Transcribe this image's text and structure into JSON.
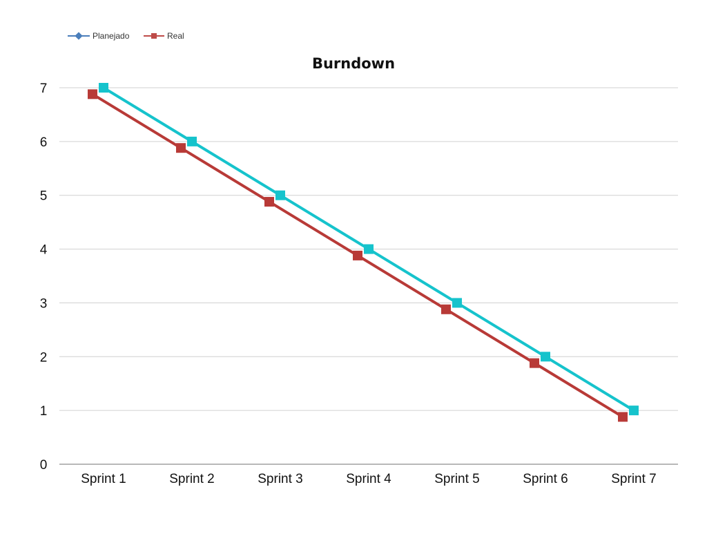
{
  "chart_data": {
    "type": "line",
    "title": "Burndown",
    "xlabel": "",
    "ylabel": "",
    "categories": [
      "Sprint 1",
      "Sprint 2",
      "Sprint 3",
      "Sprint 4",
      "Sprint 5",
      "Sprint 6",
      "Sprint 7"
    ],
    "ylim": [
      0,
      7
    ],
    "yticks": [
      "0",
      "1",
      "2",
      "3",
      "4",
      "5",
      "6",
      "7"
    ],
    "grid": true,
    "legend": {
      "placement": "top-left",
      "entries": [
        {
          "name": "Planejado",
          "color": "#4a7ebb",
          "marker": "diamond"
        },
        {
          "name": "Real",
          "color": "#be4b48",
          "marker": "square"
        }
      ]
    },
    "series": [
      {
        "name": "",
        "color": "#16c3cc",
        "values": [
          7,
          6,
          5,
          4,
          3,
          2,
          1
        ]
      },
      {
        "name": "",
        "color": "#b83a37",
        "values": [
          6.88,
          5.88,
          4.88,
          3.88,
          2.88,
          1.88,
          0.88
        ]
      }
    ]
  }
}
